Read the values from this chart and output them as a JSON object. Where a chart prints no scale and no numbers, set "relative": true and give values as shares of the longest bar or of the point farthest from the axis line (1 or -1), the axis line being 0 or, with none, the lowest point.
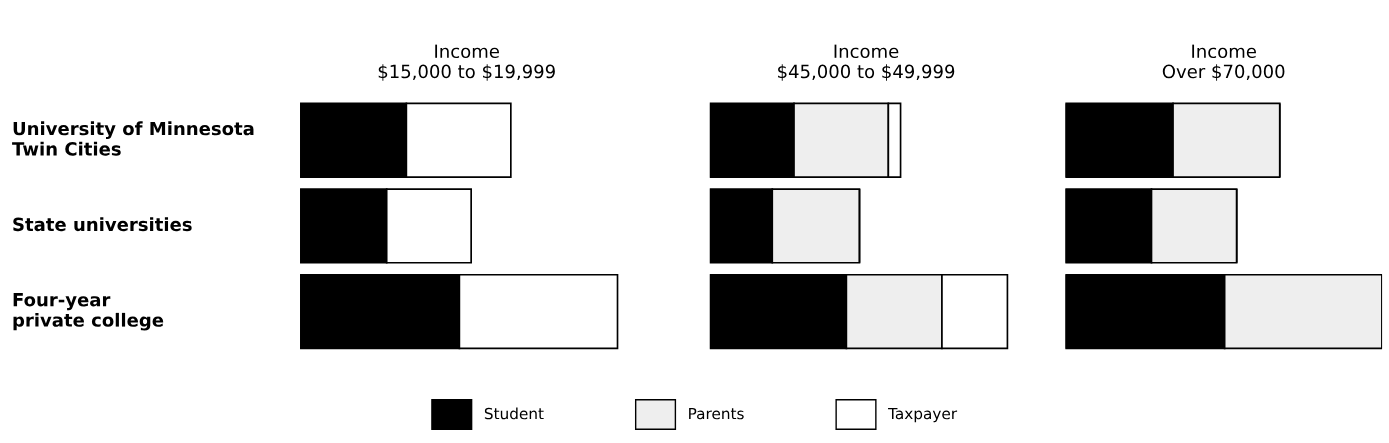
{
  "chart_data": [
    {
      "type": "bar",
      "orientation": "horizontal",
      "stacked": true,
      "relative": true,
      "title": "Income\n$15,000 to $19,999",
      "legend": "bottom",
      "categories": [
        "University of Minnesota\nTwin Cities",
        "State universities",
        "Four-year\nprivate college"
      ],
      "series": [
        {
          "name": "Student",
          "color": "#000000",
          "values": [
            0.335,
            0.273,
            0.502
          ]
        },
        {
          "name": "Parents",
          "color": "#eeeeee",
          "values": [
            null,
            null,
            null
          ]
        },
        {
          "name": "Taxpayer",
          "color": "#ffffff",
          "values": [
            0.329,
            0.266,
            0.498
          ]
        }
      ]
    },
    {
      "type": "bar",
      "orientation": "horizontal",
      "stacked": true,
      "relative": true,
      "title": "Income\n$45,000 to $49,999",
      "categories": [
        null,
        null,
        null
      ],
      "series": [
        {
          "color": "#000000",
          "values": [
            0.283,
            0.21,
            0.459
          ]
        },
        {
          "color": "#eeeeee",
          "values": [
            0.317,
            0.293,
            0.321
          ]
        },
        {
          "color": "#ffffff",
          "values": [
            0.041,
            null,
            0.22
          ]
        }
      ]
    },
    {
      "type": "bar",
      "orientation": "horizontal",
      "stacked": true,
      "relative": true,
      "title": "Income\nOver $70,000",
      "categories": [
        null,
        null,
        null
      ],
      "series": [
        {
          "color": "#000000",
          "values": [
            0.34,
            0.272,
            0.503
          ]
        },
        {
          "color": "#eeeeee",
          "values": [
            0.337,
            0.269,
            0.497
          ]
        },
        {
          "color": "#ffffff",
          "values": [
            null,
            null,
            null
          ]
        }
      ]
    }
  ]
}
